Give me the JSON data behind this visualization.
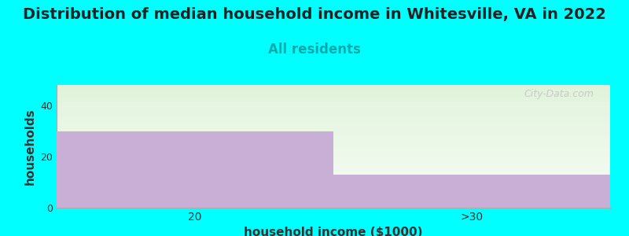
{
  "title": "Distribution of median household income in Whitesville, VA in 2022",
  "subtitle": "All residents",
  "categories": [
    "20",
    ">30"
  ],
  "values": [
    30,
    13
  ],
  "bar_color": "#c9aed6",
  "background_color": "#00ffff",
  "xlabel": "household income ($1000)",
  "ylabel": "households",
  "ylim": [
    0,
    48
  ],
  "yticks": [
    0,
    20,
    40
  ],
  "title_fontsize": 14,
  "subtitle_fontsize": 12,
  "subtitle_color": "#00aaaa",
  "axis_label_fontsize": 11,
  "watermark": "City-Data.com",
  "title_color": "#222222"
}
